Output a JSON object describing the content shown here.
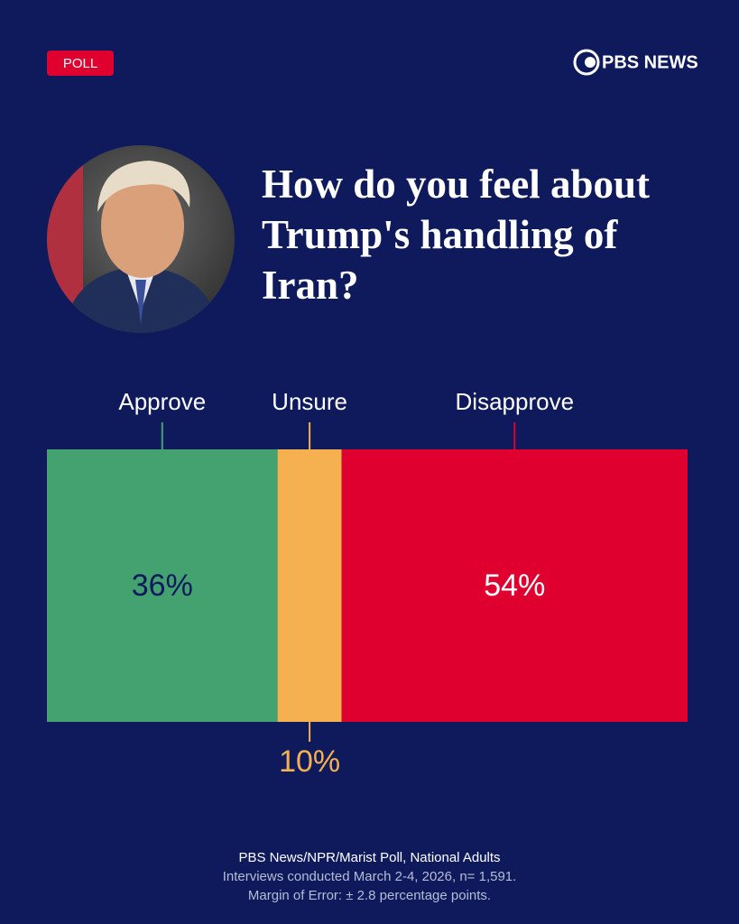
{
  "header": {
    "badge": "POLL",
    "brand": "PBS NEWS"
  },
  "chart_data": {
    "type": "bar",
    "orientation": "horizontal",
    "stacked": true,
    "title": "How do you feel about Trump's handling of Iran?",
    "series": [
      {
        "name": "Approve",
        "color": "#43a26f",
        "values": [
          36
        ],
        "value_labels": [
          "36%"
        ]
      },
      {
        "name": "Unsure",
        "color": "#f5b04f",
        "values": [
          10
        ],
        "value_labels": [
          "10%"
        ]
      },
      {
        "name": "Disapprove",
        "color": "#e0002f",
        "values": [
          54
        ],
        "value_labels": [
          "54%"
        ]
      }
    ]
  },
  "footer": {
    "lines": [
      "PBS News/NPR/Marist Poll, National Adults",
      "Interviews conducted March 2-4, 2026, n= 1,591.",
      "Margin of Error: ± 2.8 percentage points."
    ]
  }
}
